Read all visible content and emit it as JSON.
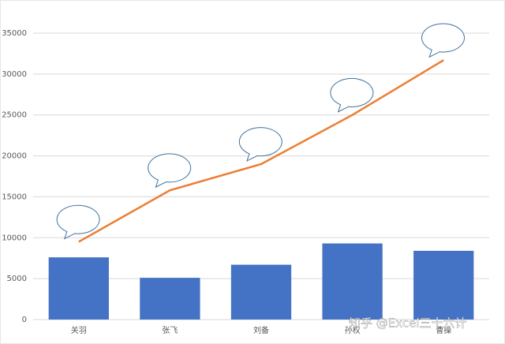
{
  "chart_data": {
    "type": "combo",
    "categories": [
      "关羽",
      "张飞",
      "刘备",
      "孙权",
      "曹操"
    ],
    "series": [
      {
        "type": "bar",
        "color": "#4472c4",
        "values": [
          7600,
          5100,
          6700,
          9300,
          8400
        ]
      },
      {
        "type": "line",
        "color": "#ed7d31",
        "values": [
          9500,
          15800,
          19000,
          25000,
          31700
        ]
      }
    ],
    "ylim": [
      0,
      35000
    ],
    "yticks": [
      0,
      5000,
      10000,
      15000,
      20000,
      25000,
      30000,
      35000
    ],
    "grid": true
  },
  "watermark": "知乎 @Excel三十六计"
}
